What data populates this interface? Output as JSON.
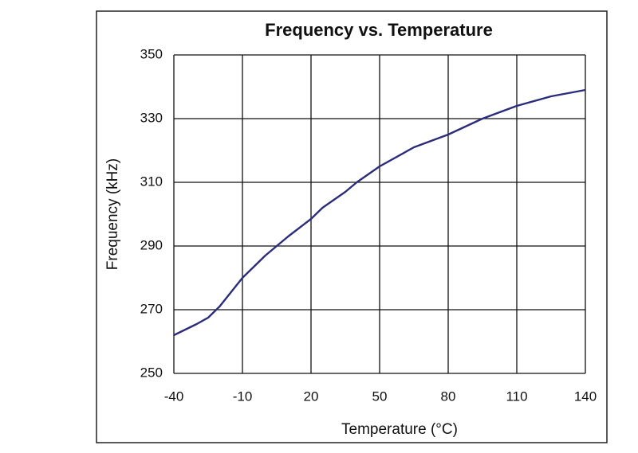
{
  "chart_data": {
    "type": "line",
    "title": "Frequency vs. Temperature",
    "x_label": "Temperature (°C)",
    "y_label": "Frequency (kHz)",
    "x": [
      -40,
      -30,
      -25,
      -20,
      -10,
      0,
      10,
      20,
      25,
      35,
      40,
      50,
      65,
      80,
      95,
      110,
      125,
      140
    ],
    "series": [
      {
        "name": "Frequency",
        "color": "#2b2d7c",
        "values": [
          262,
          265.5,
          267.5,
          271,
          280,
          287,
          293,
          298.5,
          302,
          307,
          310,
          315,
          321,
          325,
          330,
          334,
          337,
          339
        ]
      }
    ],
    "xlim": [
      -40,
      140
    ],
    "xticks": [
      -40,
      -10,
      20,
      50,
      80,
      110,
      140
    ],
    "ylim": [
      250,
      350
    ],
    "yticks": [
      250,
      270,
      290,
      310,
      330,
      350
    ],
    "grid": true
  }
}
